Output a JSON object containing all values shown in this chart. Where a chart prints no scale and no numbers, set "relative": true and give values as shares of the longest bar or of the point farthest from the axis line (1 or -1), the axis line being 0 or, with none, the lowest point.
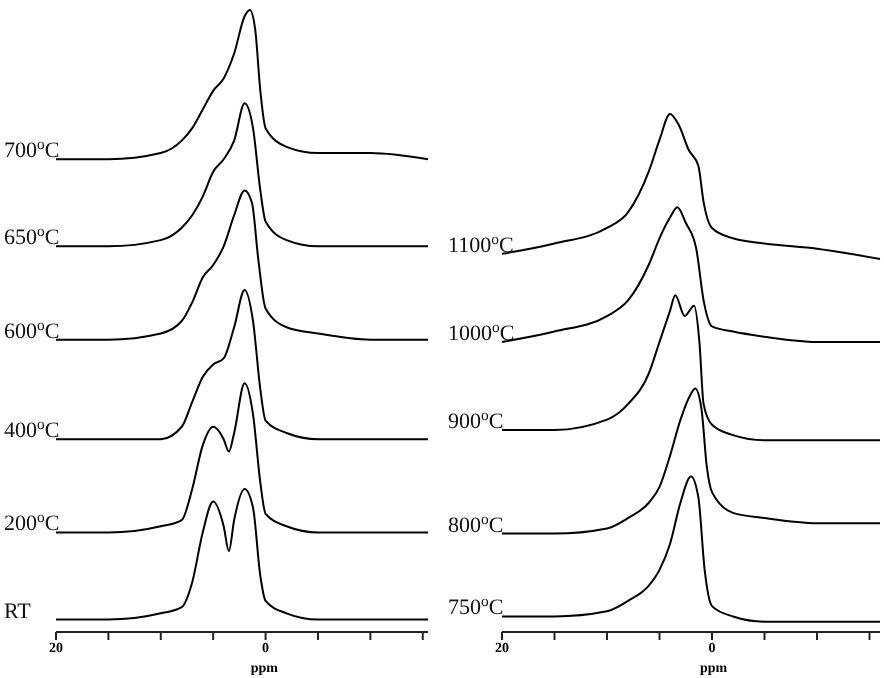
{
  "chart_data": [
    {
      "type": "line",
      "relative": true,
      "xlabel": "ppm",
      "xlim": [
        20,
        -15.5
      ],
      "xticks": [
        {
          "value": 20,
          "label": "20"
        },
        {
          "value": 15,
          "label": null
        },
        {
          "value": 10,
          "label": null
        },
        {
          "value": 5,
          "label": null
        },
        {
          "value": 0,
          "label": "0"
        },
        {
          "value": -5,
          "label": null
        },
        {
          "value": -10,
          "label": null
        },
        {
          "value": -15,
          "label": null
        }
      ],
      "legend": false,
      "marker": "none",
      "line_style": "solid",
      "series": [
        {
          "name": "RT",
          "color": "#000000",
          "x": [
            20,
            15,
            10,
            8,
            7,
            6,
            5,
            4,
            3.5,
            3,
            2,
            1.2,
            0.5,
            0,
            -2,
            -5,
            -10,
            -15.5
          ],
          "values": [
            0.02,
            0.02,
            0.03,
            0.04,
            0.08,
            0.16,
            0.21,
            0.17,
            0.13,
            0.18,
            0.23,
            0.2,
            0.09,
            0.05,
            0.03,
            0.02,
            0.02,
            0.02
          ]
        },
        {
          "name": "200$^{o}$C",
          "color": "#000000",
          "x": [
            20,
            15,
            10,
            8,
            7,
            6,
            5,
            4,
            3.5,
            3,
            2,
            1.2,
            0.5,
            0,
            -2,
            -5,
            -10,
            -15.5
          ],
          "values": [
            0.16,
            0.16,
            0.17,
            0.18,
            0.23,
            0.3,
            0.33,
            0.31,
            0.29,
            0.32,
            0.4,
            0.35,
            0.24,
            0.19,
            0.17,
            0.16,
            0.16,
            0.16
          ]
        },
        {
          "name": "400$^{o}$C",
          "color": "#000000",
          "x": [
            20,
            15,
            10,
            8,
            7,
            6,
            5,
            4,
            3,
            2,
            1.2,
            0.5,
            0,
            -2,
            -5,
            -10,
            -15.5
          ],
          "values": [
            0.31,
            0.31,
            0.31,
            0.33,
            0.37,
            0.41,
            0.43,
            0.44,
            0.49,
            0.55,
            0.5,
            0.39,
            0.34,
            0.32,
            0.31,
            0.31,
            0.31
          ]
        },
        {
          "name": "600$^{o}$C",
          "color": "#000000",
          "x": [
            20,
            15,
            10,
            8,
            7,
            6,
            5,
            4,
            3,
            2,
            1.3,
            0.7,
            0,
            -2,
            -5,
            -10,
            -15.5
          ],
          "values": [
            0.47,
            0.47,
            0.48,
            0.5,
            0.53,
            0.57,
            0.59,
            0.62,
            0.67,
            0.71,
            0.69,
            0.6,
            0.52,
            0.49,
            0.48,
            0.47,
            0.47
          ]
        },
        {
          "name": "650$^{o}$C",
          "color": "#000000",
          "x": [
            20,
            15,
            10,
            8,
            7,
            6,
            5,
            4,
            3,
            2,
            1.2,
            0.5,
            0,
            -2,
            -5,
            -10,
            -15.5
          ],
          "values": [
            0.62,
            0.62,
            0.63,
            0.65,
            0.67,
            0.7,
            0.74,
            0.76,
            0.79,
            0.85,
            0.81,
            0.71,
            0.66,
            0.63,
            0.62,
            0.62,
            0.62
          ]
        },
        {
          "name": "700$^{o}$C",
          "color": "#000000",
          "x": [
            20,
            15,
            10,
            8,
            7,
            6,
            5,
            4,
            3,
            2,
            1.5,
            1,
            0.5,
            0,
            -2,
            -5,
            -10,
            -15.5
          ],
          "values": [
            0.76,
            0.76,
            0.77,
            0.79,
            0.81,
            0.84,
            0.87,
            0.89,
            0.93,
            0.99,
            1.0,
            0.97,
            0.87,
            0.81,
            0.78,
            0.77,
            0.77,
            0.76
          ]
        }
      ]
    },
    {
      "type": "line",
      "relative": true,
      "xlabel": "ppm",
      "xlim": [
        20,
        -16
      ],
      "xticks": [
        {
          "value": 20,
          "label": "20"
        },
        {
          "value": 15,
          "label": null
        },
        {
          "value": 10,
          "label": null
        },
        {
          "value": 5,
          "label": null
        },
        {
          "value": 0,
          "label": "0"
        },
        {
          "value": -5,
          "label": null
        },
        {
          "value": -10,
          "label": null
        },
        {
          "value": -15,
          "label": null
        }
      ],
      "legend": false,
      "marker": "none",
      "line_style": "solid",
      "series": [
        {
          "name": "750$^{o}$C",
          "color": "#000000",
          "x": [
            20,
            15,
            10,
            8,
            6,
            5,
            4,
            3,
            2,
            1.3,
            0.7,
            0,
            -2,
            -5,
            -10,
            -16
          ],
          "values": [
            0.03,
            0.03,
            0.04,
            0.06,
            0.09,
            0.12,
            0.17,
            0.25,
            0.3,
            0.26,
            0.12,
            0.05,
            0.03,
            0.02,
            0.02,
            0.02
          ]
        },
        {
          "name": "800$^{o}$C",
          "color": "#000000",
          "x": [
            20,
            15,
            10,
            8,
            6,
            5,
            4,
            3,
            2,
            1.6,
            1,
            0.5,
            0,
            -2,
            -5,
            -10,
            -16
          ],
          "values": [
            0.19,
            0.19,
            0.2,
            0.22,
            0.25,
            0.28,
            0.34,
            0.41,
            0.46,
            0.47,
            0.43,
            0.32,
            0.27,
            0.23,
            0.22,
            0.21,
            0.21
          ]
        },
        {
          "name": "900$^{o}$C",
          "color": "#000000",
          "x": [
            20,
            15,
            10,
            8,
            6,
            5,
            4,
            3.5,
            2.6,
            1.7,
            1.2,
            0.8,
            0,
            -2,
            -5,
            -10,
            -16
          ],
          "values": [
            0.39,
            0.39,
            0.41,
            0.44,
            0.5,
            0.56,
            0.62,
            0.65,
            0.61,
            0.63,
            0.56,
            0.44,
            0.4,
            0.38,
            0.37,
            0.37,
            0.37
          ]
        },
        {
          "name": "1000$^{o}$C",
          "color": "#000000",
          "x": [
            20,
            15,
            10,
            8,
            6,
            5,
            4,
            3.3,
            2.5,
            1.5,
            0.8,
            0,
            -2,
            -5,
            -10,
            -16
          ],
          "values": [
            0.56,
            0.58,
            0.61,
            0.64,
            0.71,
            0.76,
            0.8,
            0.82,
            0.79,
            0.74,
            0.64,
            0.59,
            0.58,
            0.57,
            0.56,
            0.56
          ]
        },
        {
          "name": "1100$^{o}$C",
          "color": "#000000",
          "x": [
            20,
            15,
            10,
            8,
            6,
            5,
            4,
            3.2,
            2.2,
            1.3,
            0.8,
            0,
            -2,
            -5,
            -10,
            -16
          ],
          "values": [
            0.73,
            0.75,
            0.78,
            0.81,
            0.89,
            0.95,
            1.0,
            0.98,
            0.93,
            0.9,
            0.83,
            0.78,
            0.76,
            0.75,
            0.74,
            0.72
          ]
        }
      ]
    }
  ]
}
